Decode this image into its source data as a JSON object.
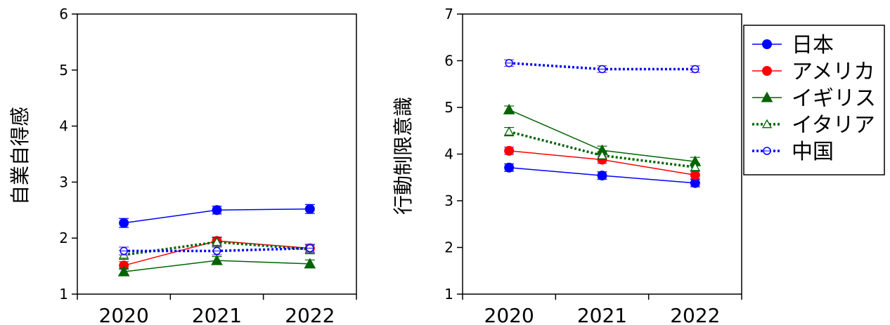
{
  "chart_data": [
    {
      "type": "line",
      "ylabel": "自業自得感",
      "categories": [
        "2020",
        "2021",
        "2022"
      ],
      "yticks": [
        "1",
        "2",
        "3",
        "4",
        "5",
        "6"
      ],
      "ylim": [
        1,
        6
      ],
      "grid": false,
      "series": [
        {
          "name": "日本",
          "values": [
            2.27,
            2.5,
            2.52
          ],
          "err": [
            0.08,
            0.07,
            0.08
          ]
        },
        {
          "name": "アメリカ",
          "values": [
            1.51,
            1.95,
            1.82
          ],
          "err": [
            0.07,
            0.07,
            0.07
          ]
        },
        {
          "name": "イギリス",
          "values": [
            1.4,
            1.6,
            1.54
          ],
          "err": [
            0.06,
            0.07,
            0.07
          ]
        },
        {
          "name": "イタリア",
          "values": [
            1.7,
            1.93,
            1.8
          ],
          "err": [
            0.08,
            0.08,
            0.08
          ]
        },
        {
          "name": "中国",
          "values": [
            1.77,
            1.77,
            1.82
          ],
          "err": [
            0.07,
            0.07,
            0.07
          ]
        }
      ]
    },
    {
      "type": "line",
      "ylabel": "行動制限意識",
      "categories": [
        "2020",
        "2021",
        "2022"
      ],
      "yticks": [
        "1",
        "2",
        "3",
        "4",
        "5",
        "6",
        "7"
      ],
      "ylim": [
        1,
        7
      ],
      "grid": false,
      "legend_position": "right",
      "series": [
        {
          "name": "日本",
          "values": [
            3.71,
            3.54,
            3.38
          ],
          "err": [
            0.08,
            0.08,
            0.08
          ]
        },
        {
          "name": "アメリカ",
          "values": [
            4.07,
            3.88,
            3.55
          ],
          "err": [
            0.08,
            0.08,
            0.08
          ]
        },
        {
          "name": "イギリス",
          "values": [
            4.95,
            4.08,
            3.84
          ],
          "err": [
            0.08,
            0.09,
            0.09
          ]
        },
        {
          "name": "イタリア",
          "values": [
            4.48,
            3.97,
            3.72
          ],
          "err": [
            0.09,
            0.08,
            0.08
          ]
        },
        {
          "name": "中国",
          "values": [
            5.95,
            5.82,
            5.82
          ],
          "err": [
            0.07,
            0.07,
            0.07
          ]
        }
      ]
    }
  ],
  "legend": [
    "日本",
    "アメリカ",
    "イギリス",
    "イタリア",
    "中国"
  ],
  "colors": {
    "japan": "#0000ff",
    "usa": "#ff0000",
    "uk": "#006400",
    "italy": "#006400",
    "china": "#0000ff",
    "errorbar_purple": "#8a2be2"
  }
}
